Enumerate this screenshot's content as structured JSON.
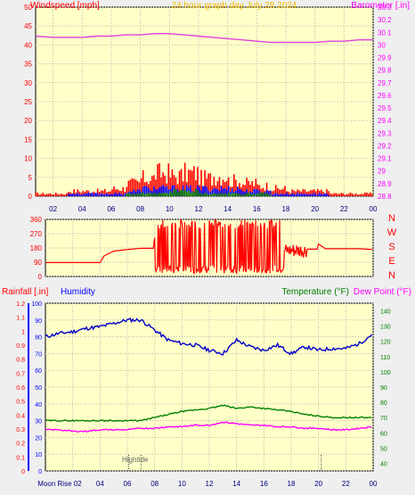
{
  "colors": {
    "plot_bg": "#ffffc8",
    "page_bg": "#efefef",
    "red": "#ff0000",
    "blue": "#0000ff",
    "green": "#008000",
    "magenta": "#ff00ff",
    "pressure": "#e040e0",
    "temperature": "#008000",
    "dewpoint": "#ff00ff",
    "humidity": "#0000c8",
    "gold": "#f0c000",
    "axis_red": "#ff0000",
    "axis_navy": "#000080",
    "dark_text": "#000080"
  },
  "chart_data": [
    {
      "type": "line",
      "panel": "wind-and-barometer",
      "title": "24 hour graph day   July 28 2024",
      "left_axis_label": "Windspeed [mph]",
      "right_axis_label": "Barometer [.in]",
      "x_ticks": [
        "02",
        "04",
        "06",
        "08",
        "10",
        "12",
        "14",
        "16",
        "18",
        "20",
        "22",
        "00"
      ],
      "left_ticks": [
        "0",
        "5",
        "10",
        "15",
        "20",
        "25",
        "30",
        "35",
        "40",
        "45",
        "50"
      ],
      "right_ticks": [
        "28.8",
        "28.9",
        "29",
        "29.1",
        "29.2",
        "29.3",
        "29.4",
        "29.5",
        "29.6",
        "29.7",
        "29.8",
        "29.9",
        "30",
        "30.1",
        "30.2",
        "30.3"
      ],
      "ylim_left": [
        0,
        50
      ],
      "ylim_right": [
        28.8,
        30.3
      ],
      "xlim_hours": [
        0.8,
        24.0
      ],
      "series": [
        {
          "name": "Barometer",
          "axis": "right",
          "x": [
            0.8,
            2,
            3,
            4,
            5,
            6,
            7,
            8,
            9,
            10,
            11,
            12,
            13,
            14,
            15,
            16,
            17,
            18,
            19,
            20,
            21,
            22,
            23,
            24
          ],
          "y": [
            30.07,
            30.06,
            30.06,
            30.06,
            30.07,
            30.07,
            30.08,
            30.08,
            30.09,
            30.09,
            30.08,
            30.07,
            30.06,
            30.05,
            30.04,
            30.03,
            30.02,
            30.02,
            30.02,
            30.02,
            30.03,
            30.03,
            30.04,
            30.04
          ]
        }
      ],
      "wind_gust_hourly_mph": [
        1,
        1,
        1,
        2,
        2,
        2,
        3,
        5,
        7,
        9,
        8,
        9,
        7,
        8,
        6,
        5,
        4,
        3,
        2,
        2,
        2,
        1,
        1,
        1
      ],
      "wind_avg_hourly_mph": [
        0,
        0,
        0,
        1,
        1,
        1,
        1,
        2,
        3,
        3,
        3,
        3,
        3,
        3,
        3,
        2,
        2,
        1,
        1,
        1,
        1,
        0,
        0,
        0
      ],
      "wind_light_hourly_mph": [
        0,
        0,
        0,
        0,
        0,
        0,
        0,
        1,
        1,
        1,
        2,
        2,
        1,
        1,
        1,
        1,
        1,
        0,
        0,
        0,
        0,
        0,
        0,
        0
      ]
    },
    {
      "type": "line",
      "panel": "wind-direction",
      "left_ticks": [
        "0",
        "90",
        "180",
        "270",
        "360"
      ],
      "ylim": [
        0,
        360
      ],
      "right_labels": [
        "N",
        "W",
        "S",
        "E",
        "N"
      ],
      "series": [
        {
          "name": "Wind direction",
          "x": [
            0,
            1,
            2,
            3,
            4,
            4.3,
            5,
            6,
            7,
            7.9,
            8.0,
            8.5,
            9,
            10,
            11,
            12,
            13,
            14,
            15,
            16,
            17,
            17.5,
            18,
            19,
            19.9,
            20.0,
            20.5,
            21,
            22,
            23,
            24
          ],
          "y": [
            88,
            88,
            88,
            88,
            88,
            130,
            160,
            170,
            178,
            178,
            245,
            180,
            170,
            200,
            190,
            220,
            200,
            180,
            160,
            140,
            120,
            115,
            170,
            172,
            172,
            205,
            175,
            175,
            175,
            175,
            170
          ]
        }
      ]
    },
    {
      "type": "line",
      "panel": "rain-humidity-temperature",
      "left_axis_label": "Rainfall [.in]",
      "humidity_label": "Humidity",
      "temperature_label": "Temperature (°F)",
      "dewpoint_label": "Dew Point (°F)",
      "rain_ticks": [
        "0",
        "0.1",
        "0.2",
        "0.3",
        "0.4",
        "0.5",
        "0.6",
        "0.7",
        "0.8",
        "0.9",
        "1",
        "1.1",
        "1.2"
      ],
      "humidity_ticks": [
        "0",
        "10",
        "20",
        "30",
        "40",
        "50",
        "60",
        "70",
        "80",
        "90",
        "100"
      ],
      "temp_ticks": [
        "40",
        "50",
        "60",
        "70",
        "80",
        "90",
        "100",
        "110",
        "120",
        "130",
        "140"
      ],
      "ylim_rain": [
        0,
        1.2
      ],
      "ylim_humidity": [
        0,
        100
      ],
      "ylim_temp": [
        35,
        145
      ],
      "x_bottom_labels": [
        "Moon Rise 02",
        "04",
        "06",
        "08",
        "10",
        "12",
        "14",
        "16",
        "18",
        "20",
        "22",
        "00"
      ],
      "annotations": [
        "Hightide"
      ],
      "series": [
        {
          "name": "Humidity",
          "x": [
            0,
            1,
            2,
            3,
            4,
            5,
            6,
            7,
            8,
            9,
            10,
            11,
            12,
            13,
            14,
            15,
            16,
            17,
            18,
            19,
            20,
            21,
            22,
            23,
            24
          ],
          "y": [
            80,
            82,
            83,
            85,
            86,
            88,
            90,
            90,
            84,
            78,
            76,
            75,
            72,
            70,
            78,
            74,
            72,
            75,
            70,
            74,
            72,
            73,
            73,
            76,
            82
          ]
        },
        {
          "name": "Temperature",
          "x": [
            0,
            1,
            2,
            3,
            4,
            5,
            6,
            7,
            8,
            9,
            10,
            11,
            12,
            13,
            14,
            15,
            16,
            17,
            18,
            19,
            20,
            21,
            22,
            23,
            24
          ],
          "y": [
            68,
            68,
            68,
            68,
            68,
            68,
            68,
            68,
            70,
            72,
            74,
            75,
            76,
            78,
            76,
            77,
            76,
            75,
            74,
            72,
            71,
            70,
            70,
            70,
            70
          ]
        },
        {
          "name": "Dew Point",
          "x": [
            0,
            1,
            2,
            3,
            4,
            5,
            6,
            7,
            8,
            9,
            10,
            11,
            12,
            13,
            14,
            15,
            16,
            17,
            18,
            19,
            20,
            21,
            22,
            23,
            24
          ],
          "y": [
            62,
            62,
            61,
            61,
            62,
            62,
            62,
            63,
            63,
            64,
            64,
            65,
            65,
            67,
            66,
            65,
            65,
            64,
            64,
            63,
            63,
            62,
            62,
            63,
            64
          ]
        }
      ],
      "tide_marker_hours": [
        6.1,
        7.0,
        20.2
      ]
    }
  ]
}
